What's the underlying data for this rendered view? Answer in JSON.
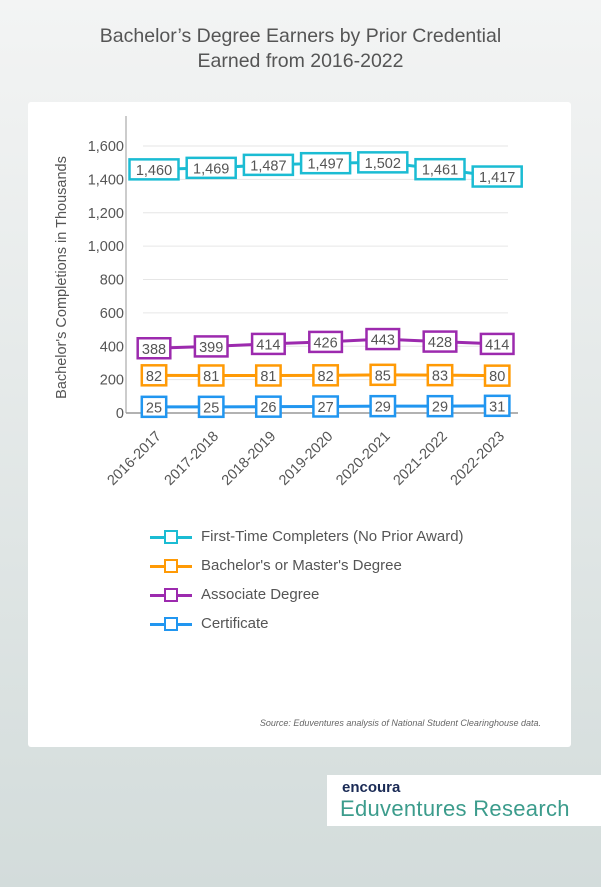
{
  "chart_data": {
    "type": "line",
    "title": "Bachelor’s Degree Earners by Prior Credential Earned from 2016-2022",
    "title_lines": [
      "Bachelor’s Degree Earners by Prior Credential",
      "Earned from 2016-2022"
    ],
    "ylabel": "Bachelor's Completions in Thousands",
    "xlabel": "",
    "ylim": [
      0,
      1600
    ],
    "yticks": [
      "0",
      "200",
      "400",
      "600",
      "800",
      "1,000",
      "1,200",
      "1,400",
      "1,600"
    ],
    "ytick_values": [
      0,
      200,
      400,
      600,
      800,
      1000,
      1200,
      1400,
      1600
    ],
    "grid": true,
    "legend_position": "bottom",
    "categories": [
      "2016-2017",
      "2017-2018",
      "2018-2019",
      "2019-2020",
      "2020-2021",
      "2021-2022",
      "2022-2023"
    ],
    "series": [
      {
        "name": "First-Time Completers (No Prior Award)",
        "color": "#1bbcd3",
        "values": [
          1460,
          1469,
          1487,
          1497,
          1502,
          1461,
          1417
        ],
        "labels": [
          "1,460",
          "1,469",
          "1,487",
          "1,497",
          "1,502",
          "1,461",
          "1,417"
        ]
      },
      {
        "name": "Bachelor's or Master's Degree",
        "color": "#ff9a05",
        "values": [
          82,
          81,
          81,
          82,
          85,
          83,
          80
        ],
        "labels": [
          "82",
          "81",
          "81",
          "82",
          "85",
          "83",
          "80"
        ]
      },
      {
        "name": "Associate Degree",
        "color": "#9c2aae",
        "values": [
          388,
          399,
          414,
          426,
          443,
          428,
          414
        ],
        "labels": [
          "388",
          "399",
          "414",
          "426",
          "443",
          "428",
          "414"
        ]
      },
      {
        "name": "Certificate",
        "color": "#2196f0",
        "values": [
          25,
          25,
          26,
          27,
          29,
          29,
          31
        ],
        "labels": [
          "25",
          "25",
          "26",
          "27",
          "29",
          "29",
          "31"
        ]
      }
    ]
  },
  "source": "Source: Eduventures analysis of National Student Clearinghouse data.",
  "logo": {
    "brand": "encoura",
    "product": "Eduventures Research"
  }
}
